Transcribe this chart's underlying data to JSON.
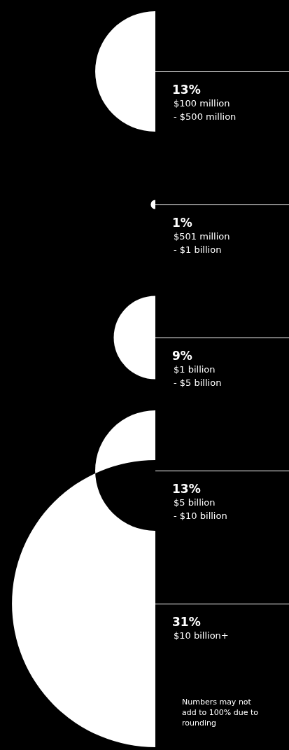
{
  "chart_data": {
    "type": "other",
    "categories": [
      "$100 million - $500 million",
      "$501 million - $1 billion",
      "$1 billion - $5 billion",
      "$5 billion - $10 billion",
      "$10 billion+"
    ],
    "values": [
      13,
      1,
      9,
      13,
      31
    ],
    "value_labels": [
      "13%",
      "1%",
      "9%",
      "13%",
      "31%"
    ],
    "colors": [
      "#ffffff",
      "#ffffff",
      "#ffffff",
      "#ffffff",
      "#ffffff"
    ],
    "annotations": [
      "Numbers may not add to 100% due to rounding"
    ]
  }
}
